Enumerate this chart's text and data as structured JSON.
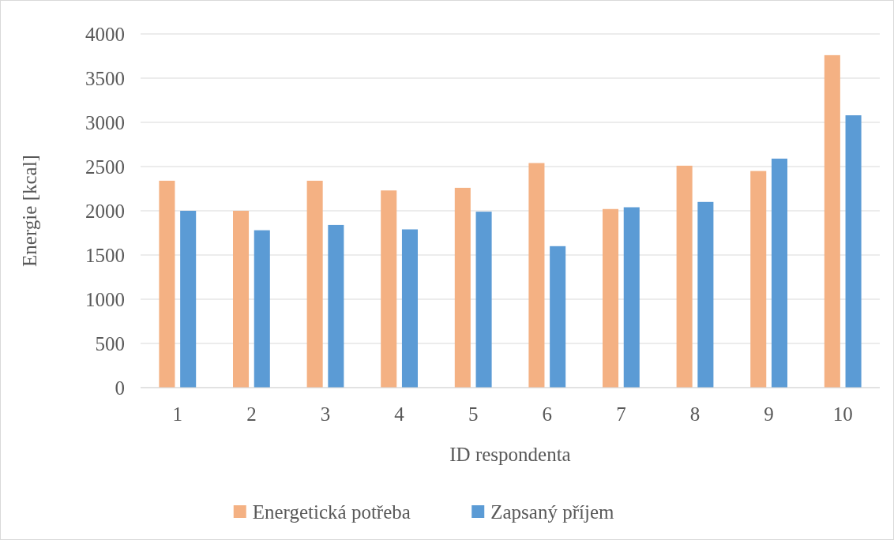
{
  "chart_data": {
    "type": "bar",
    "xlabel": "ID respondenta",
    "ylabel": "Energie [kcal]",
    "categories": [
      "1",
      "2",
      "3",
      "4",
      "5",
      "6",
      "7",
      "8",
      "9",
      "10"
    ],
    "series": [
      {
        "name": "Energetická potřeba",
        "color": "#f4b183",
        "values": [
          2340,
          2000,
          2340,
          2230,
          2260,
          2540,
          2020,
          2510,
          2450,
          3760
        ]
      },
      {
        "name": "Zapsaný příjem",
        "color": "#5b9bd5",
        "values": [
          2000,
          1780,
          1840,
          1790,
          1990,
          1600,
          2040,
          2100,
          2590,
          3080
        ]
      }
    ],
    "ylim": [
      0,
      4000
    ],
    "yticks": [
      0,
      500,
      1000,
      1500,
      2000,
      2500,
      3000,
      3500,
      4000
    ],
    "grid": "y",
    "legend": "bottom"
  }
}
